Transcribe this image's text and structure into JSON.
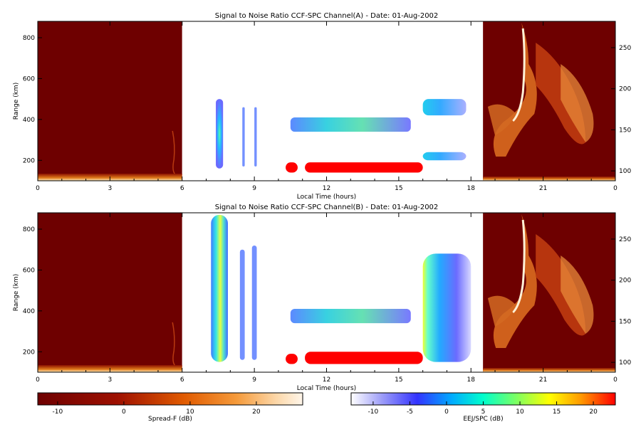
{
  "panels": [
    {
      "id": "A",
      "title": "Signal to Noise Ratio CCF-SPC Channel(A) - Date: 01-Aug-2002",
      "xlabel": "Local Time (hours)",
      "ylabel": "Range (km)"
    },
    {
      "id": "B",
      "title": "Signal to Noise Ratio CCF-SPC Channel(B) - Date: 01-Aug-2002",
      "xlabel": "Local Time (hours)",
      "ylabel": "Range (km)"
    }
  ],
  "colorbars": {
    "spreadf": {
      "label": "Spread-F (dB)",
      "ticks": [
        "-10",
        "0",
        "10",
        "20"
      ],
      "range": [
        -13,
        27
      ]
    },
    "eej": {
      "label": "EEJ/SPC (dB)",
      "ticks": [
        "-10",
        "-5",
        "0",
        "5",
        "10",
        "15",
        "20"
      ],
      "range": [
        -13,
        23
      ]
    }
  },
  "chart_data": [
    {
      "type": "heatmap",
      "title": "Signal to Noise Ratio CCF-SPC Channel(A) - Date: 01-Aug-2002",
      "xlabel": "Local Time (hours)",
      "ylabel": "Range (km)",
      "x_ticks": [
        "0",
        "3",
        "6",
        "9",
        "12",
        "15",
        "18",
        "21",
        "0"
      ],
      "x_range_hours": [
        0,
        24
      ],
      "y_left_ticks": [
        "200",
        "400",
        "600",
        "800"
      ],
      "y_left_range_km": [
        100,
        880
      ],
      "y_right_ticks": [
        "100",
        "150",
        "200",
        "250"
      ],
      "y_right_range_km": [
        88,
        282
      ],
      "segments": [
        {
          "from_hour": 0,
          "to_hour": 6,
          "quantity": "Spread-F (dB)"
        },
        {
          "from_hour": 6,
          "to_hour": 18.5,
          "quantity": "EEJ/SPC (dB)"
        },
        {
          "from_hour": 18.5,
          "to_hour": 24,
          "quantity": "Spread-F (dB)"
        }
      ],
      "features": [
        {
          "desc": "echo column",
          "hours": [
            7.4,
            7.7
          ],
          "range_km": [
            160,
            500
          ],
          "peak_db": 3
        },
        {
          "desc": "thin echo",
          "hours": [
            8.5,
            8.6
          ],
          "range_km": [
            170,
            460
          ],
          "peak_db": -3
        },
        {
          "desc": "thin echo",
          "hours": [
            9.0,
            9.1
          ],
          "range_km": [
            170,
            460
          ],
          "peak_db": -2
        },
        {
          "desc": "EEJ blob",
          "hours": [
            10.3,
            10.8
          ],
          "range_km": [
            140,
            190
          ],
          "peak_db": 22
        },
        {
          "desc": "EEJ band",
          "hours": [
            11.1,
            16
          ],
          "range_km": [
            140,
            190
          ],
          "peak_db": 22
        },
        {
          "desc": "150 km echo band",
          "hours": [
            10.5,
            15.5
          ],
          "range_km": [
            340,
            410
          ],
          "peak_db": 5
        },
        {
          "desc": "upper layer",
          "hours": [
            16,
            17.8
          ],
          "range_km": [
            420,
            500
          ],
          "peak_db": 5
        },
        {
          "desc": "lower layer",
          "hours": [
            16,
            17.8
          ],
          "range_km": [
            200,
            240
          ],
          "peak_db": 3
        }
      ]
    },
    {
      "type": "heatmap",
      "title": "Signal to Noise Ratio CCF-SPC Channel(B) - Date: 01-Aug-2002",
      "xlabel": "Local Time (hours)",
      "ylabel": "Range (km)",
      "x_ticks": [
        "0",
        "3",
        "6",
        "9",
        "12",
        "15",
        "18",
        "21",
        "0"
      ],
      "x_range_hours": [
        0,
        24
      ],
      "y_left_ticks": [
        "200",
        "400",
        "600",
        "800"
      ],
      "y_left_range_km": [
        100,
        880
      ],
      "y_right_ticks": [
        "100",
        "150",
        "200",
        "250"
      ],
      "y_right_range_km": [
        88,
        282
      ],
      "segments": [
        {
          "from_hour": 0,
          "to_hour": 6,
          "quantity": "Spread-F (dB)"
        },
        {
          "from_hour": 6,
          "to_hour": 18.5,
          "quantity": "EEJ/SPC (dB)"
        },
        {
          "from_hour": 18.5,
          "to_hour": 24,
          "quantity": "Spread-F (dB)"
        }
      ],
      "features": [
        {
          "desc": "tall echo column",
          "hours": [
            7.2,
            7.9
          ],
          "range_km": [
            150,
            870
          ],
          "peak_db": 12
        },
        {
          "desc": "thin echo",
          "hours": [
            8.4,
            8.6
          ],
          "range_km": [
            160,
            700
          ],
          "peak_db": 3
        },
        {
          "desc": "thin echo",
          "hours": [
            8.9,
            9.1
          ],
          "range_km": [
            160,
            720
          ],
          "peak_db": 3
        },
        {
          "desc": "EEJ blob",
          "hours": [
            10.3,
            10.8
          ],
          "range_km": [
            140,
            190
          ],
          "peak_db": 22
        },
        {
          "desc": "EEJ band",
          "hours": [
            11.1,
            16
          ],
          "range_km": [
            140,
            200
          ],
          "peak_db": 22
        },
        {
          "desc": "150 km echo band",
          "hours": [
            10.5,
            15.5
          ],
          "range_km": [
            340,
            410
          ],
          "peak_db": 5
        },
        {
          "desc": "broad post-sunset echo",
          "hours": [
            16,
            18
          ],
          "range_km": [
            150,
            680
          ],
          "peak_db": 12
        }
      ]
    }
  ]
}
